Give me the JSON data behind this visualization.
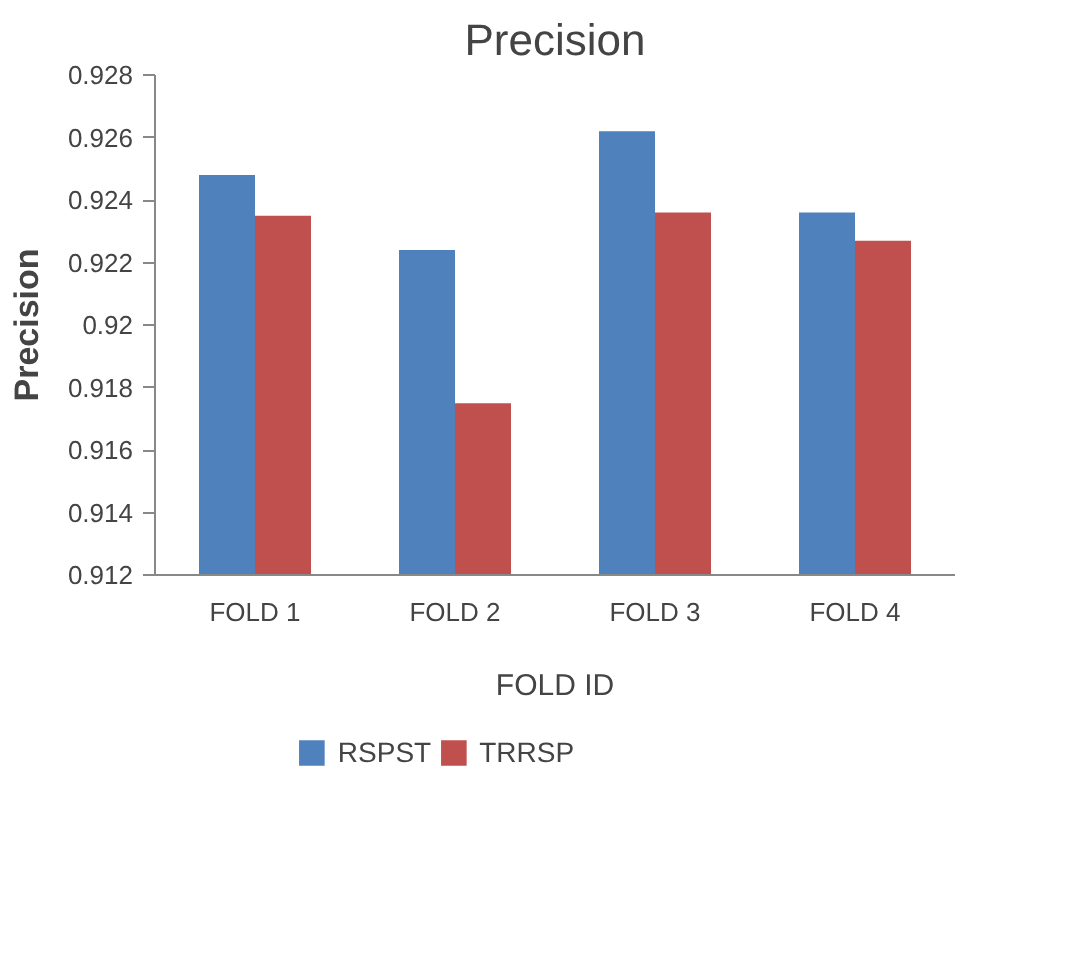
{
  "chart_data": {
    "type": "bar",
    "title": "Precision",
    "xlabel": "FOLD ID",
    "ylabel": "Precision",
    "categories": [
      "FOLD 1",
      "FOLD 2",
      "FOLD 3",
      "FOLD 4"
    ],
    "series": [
      {
        "name": "RSPST",
        "color": "#4f81bd",
        "values": [
          0.9248,
          0.9224,
          0.9262,
          0.9236
        ]
      },
      {
        "name": "TRRSP",
        "color": "#c0504d",
        "values": [
          0.9235,
          0.9175,
          0.9236,
          0.9227
        ]
      }
    ],
    "ylim": [
      0.912,
      0.928
    ],
    "yticks": [
      0.912,
      0.914,
      0.916,
      0.918,
      0.92,
      0.922,
      0.924,
      0.926,
      0.928
    ],
    "grid": false,
    "legend": "bottom"
  }
}
